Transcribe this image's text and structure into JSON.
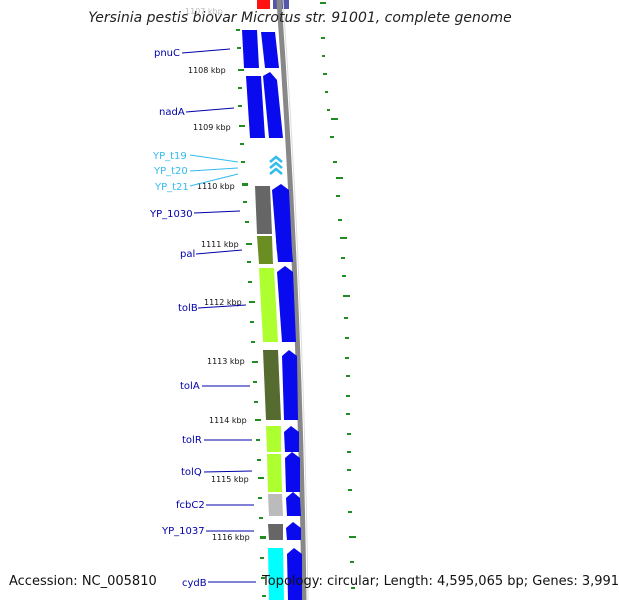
{
  "title": "Yersinia pestis biovar Microtus str. 91001, complete genome",
  "accession": "Accession: NC_005810",
  "topology": "Topology: circular; Length: 4,595,065 bp; Genes: 3,991",
  "top_tick_label": "1107 kbp",
  "ticks": [
    "1108 kbp",
    "1109 kbp",
    "1110 kbp",
    "1111 kbp",
    "1112 kbp",
    "1113 kbp",
    "1114 kbp",
    "1115 kbp",
    "1116 kbp"
  ],
  "genes": [
    {
      "name": "pnuC",
      "color": "#0000aa"
    },
    {
      "name": "nadA",
      "color": "#0000aa"
    },
    {
      "name": "YP_t19",
      "color": "#33bbee"
    },
    {
      "name": "YP_t20",
      "color": "#33bbee"
    },
    {
      "name": "YP_t21",
      "color": "#33bbee"
    },
    {
      "name": "YP_1030",
      "color": "#0000aa"
    },
    {
      "name": "pal",
      "color": "#0000aa"
    },
    {
      "name": "tolB",
      "color": "#0000aa"
    },
    {
      "name": "tolA",
      "color": "#0000aa"
    },
    {
      "name": "tolR",
      "color": "#0000aa"
    },
    {
      "name": "tolQ",
      "color": "#0000aa"
    },
    {
      "name": "fcbC2",
      "color": "#0000aa"
    },
    {
      "name": "YP_1037",
      "color": "#0000aa"
    },
    {
      "name": "cydB",
      "color": "#0000aa"
    }
  ],
  "colors": {
    "cds_blue": "#0a0aee",
    "trna_cyan": "#33bbee",
    "backbone": "#888888",
    "gc_green": "#228b22",
    "cog_dark_gray": "#666666",
    "cog_olive": "#6b8e23",
    "cog_olive_dark": "#556b2f",
    "cog_lime": "#adff2f",
    "cog_light_gray": "#bbbbbb",
    "cog_cyan": "#00ffff"
  }
}
